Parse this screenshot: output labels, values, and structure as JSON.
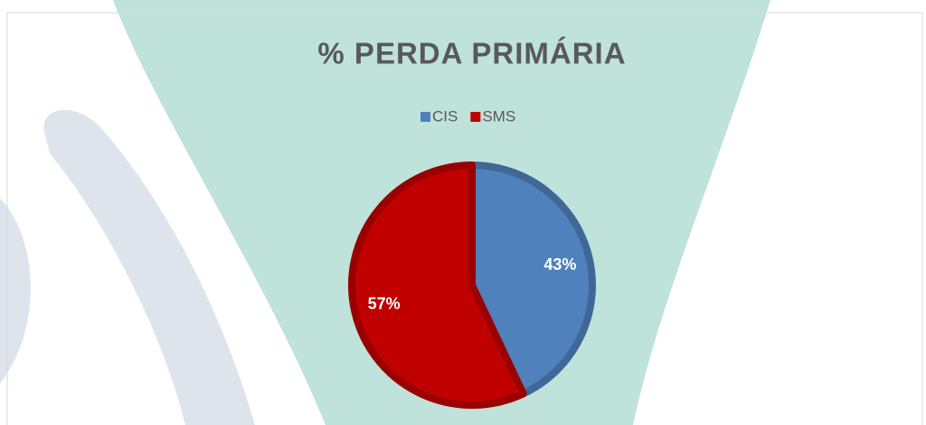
{
  "chart_data": {
    "type": "pie",
    "title": "% PERDA PRIMÁRIA",
    "categories": [
      "CIS",
      "SMS"
    ],
    "values": [
      43,
      57
    ],
    "value_labels": [
      "43%",
      "57%"
    ],
    "colors": [
      "#4f81bd",
      "#c00000"
    ],
    "legend": "top"
  }
}
